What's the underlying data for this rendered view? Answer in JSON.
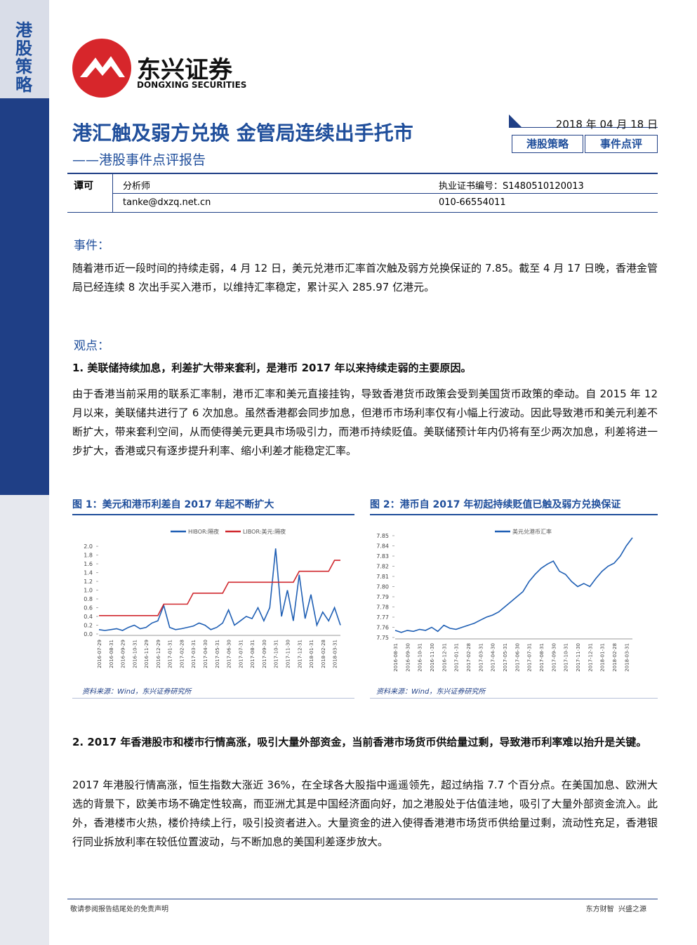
{
  "sidebar": {
    "label": "港股策略"
  },
  "header": {
    "logo_cn": "东兴证券",
    "logo_en": "DONGXING SECURITIES",
    "title": "港汇触及弱方兑换 金管局连续出手托市",
    "subtitle": "——港股事件点评报告",
    "date": "2018 年 04 月 18 日",
    "tags": [
      "港股策略",
      "事件点评"
    ]
  },
  "analyst": {
    "name": "谭可",
    "role": "分析师",
    "license": "执业证书编号：S1480510120013",
    "email": "tanke@dxzq.net.cn",
    "phone": "010-66554011"
  },
  "event": {
    "heading": "事件：",
    "text": "随着港币近一段时间的持续走弱，4 月 12 日，美元兑港币汇率首次触及弱方兑换保证的 7.85。截至 4 月 17 日晚，香港金管局已经连续 8 次出手买入港币，以维持汇率稳定，累计买入 285.97 亿港元。"
  },
  "view": {
    "heading": "观点：",
    "point1": {
      "heading": "1.  美联储持续加息，利差扩大带来套利，是港币 2017 年以来持续走弱的主要原因。",
      "text": "由于香港当前采用的联系汇率制，港币汇率和美元直接挂钩，导致香港货币政策会受到美国货币政策的牵动。自 2015 年 12 月以来，美联储共进行了 6 次加息。虽然香港都会同步加息，但港币市场利率仅有小幅上行波动。因此导致港币和美元利差不断扩大，带来套利空间，从而使得美元更具市场吸引力，而港币持续贬值。美联储预计年内仍将有至少两次加息，利差将进一步扩大，香港或只有逐步提升利率、缩小利差才能稳定汇率。"
    },
    "point2": {
      "heading": "2.  2017 年香港股市和楼市行情高涨，吸引大量外部资金，当前香港市场货币供给量过剩，导致港币利率难以抬升是关键。",
      "text": "2017 年港股行情高涨，恒生指数大涨近 36%，在全球各大股指中遥遥领先，超过纳指 7.7 个百分点。在美国加息、欧洲大选的背景下，欧美市场不确定性较高，而亚洲尤其是中国经济面向好，加之港股处于估值洼地，吸引了大量外部资金流入。此外，香港楼市火热，楼价持续上行，吸引投资者进入。大量资金的进入使得香港港市场货币供给量过剩，流动性充足，香港银行同业拆放利率在较低位置波动，与不断加息的美国利差逐步放大。"
    }
  },
  "chart_data": [
    {
      "type": "line",
      "title": "图 1：美元和港币利差自 2017 年起不断扩大",
      "source": "资料来源：Wind，东兴证券研究所",
      "categories": [
        "2016-07-29",
        null,
        "2016-08-31",
        null,
        "2016-09-29",
        null,
        "2016-10-31",
        null,
        "2016-11-29",
        null,
        "2016-12-29",
        null,
        "2017-01-31",
        null,
        "2017-02-28",
        null,
        "2017-03-31",
        null,
        "2017-04-30",
        null,
        "2017-05-31",
        null,
        "2017-06-30",
        null,
        "2017-07-31",
        null,
        "2017-08-31",
        null,
        "2017-09-30",
        null,
        "2017-10-31",
        null,
        "2017-11-30",
        null,
        "2017-12-31",
        null,
        "2018-01-31",
        null,
        "2018-02-28",
        null,
        "2018-03-31",
        null
      ],
      "series": [
        {
          "name": "HIBOR:隔夜",
          "color": "#1f5fb4",
          "values": [
            0.1,
            0.08,
            0.1,
            0.12,
            0.08,
            0.15,
            0.2,
            0.12,
            0.15,
            0.25,
            0.3,
            0.65,
            0.15,
            0.1,
            0.12,
            0.15,
            0.18,
            0.25,
            0.2,
            0.1,
            0.15,
            0.25,
            0.55,
            0.2,
            0.3,
            0.4,
            0.35,
            0.6,
            0.3,
            0.6,
            1.95,
            0.4,
            1.0,
            0.3,
            1.35,
            0.35,
            0.9,
            0.2,
            0.5,
            0.3,
            0.6,
            0.2
          ]
        },
        {
          "name": "LIBOR:美元:隔夜",
          "color": "#d0282e",
          "values": [
            0.42,
            0.42,
            0.42,
            0.42,
            0.42,
            0.42,
            0.42,
            0.42,
            0.42,
            0.42,
            0.42,
            0.68,
            0.68,
            0.68,
            0.68,
            0.68,
            0.93,
            0.93,
            0.93,
            0.93,
            0.93,
            0.93,
            1.18,
            1.18,
            1.18,
            1.18,
            1.18,
            1.18,
            1.18,
            1.18,
            1.18,
            1.18,
            1.18,
            1.18,
            1.43,
            1.43,
            1.43,
            1.43,
            1.43,
            1.43,
            1.68,
            1.68
          ]
        }
      ],
      "ylim": [
        0,
        2.05
      ],
      "yticks": [
        {
          "value": 0,
          "label": "0.0"
        },
        0.2,
        0.4,
        0.6,
        0.8,
        {
          "value": 1,
          "label": "1.0"
        },
        1.2,
        1.4,
        1.6,
        1.8,
        {
          "value": 2,
          "label": "2.0"
        }
      ]
    },
    {
      "type": "line",
      "title": "图 2：港币自 2017 年初起持续贬值已触及弱方兑换保证",
      "source": "资料来源：Wind，东兴证券研究所",
      "categories": [
        "2016-08-31",
        null,
        "2016-09-30",
        null,
        "2016-10-31",
        null,
        "2016-11-30",
        null,
        "2016-12-31",
        null,
        "2017-01-31",
        null,
        "2017-02-28",
        null,
        "2017-03-31",
        null,
        "2017-04-30",
        null,
        "2017-05-31",
        null,
        "2017-06-30",
        null,
        "2017-07-31",
        null,
        "2017-08-31",
        null,
        "2017-09-30",
        null,
        "2017-10-31",
        null,
        "2017-11-30",
        null,
        "2017-12-31",
        null,
        "2018-01-31",
        null,
        "2018-02-28",
        null,
        "2018-03-31",
        null
      ],
      "series": [
        {
          "name": "美元兑港币汇率",
          "color": "#1f5fb4",
          "values": [
            7.757,
            7.755,
            7.757,
            7.756,
            7.758,
            7.757,
            7.76,
            7.756,
            7.762,
            7.759,
            7.758,
            7.76,
            7.762,
            7.764,
            7.767,
            7.77,
            7.772,
            7.775,
            7.78,
            7.785,
            7.79,
            7.795,
            7.805,
            7.812,
            7.818,
            7.822,
            7.825,
            7.815,
            7.812,
            7.805,
            7.8,
            7.803,
            7.8,
            7.808,
            7.815,
            7.82,
            7.823,
            7.83,
            7.84,
            7.848
          ]
        }
      ],
      "ylim": [
        7.75,
        7.85
      ],
      "yticks": [
        7.75,
        7.76,
        7.77,
        7.78,
        7.79,
        {
          "value": 7.8,
          "label": "7.80"
        },
        7.81,
        7.82,
        7.83,
        7.84,
        7.85
      ]
    }
  ],
  "footer": {
    "left": "敬请参阅报告结尾处的免责声明",
    "right": "东方财智  兴盛之源"
  }
}
